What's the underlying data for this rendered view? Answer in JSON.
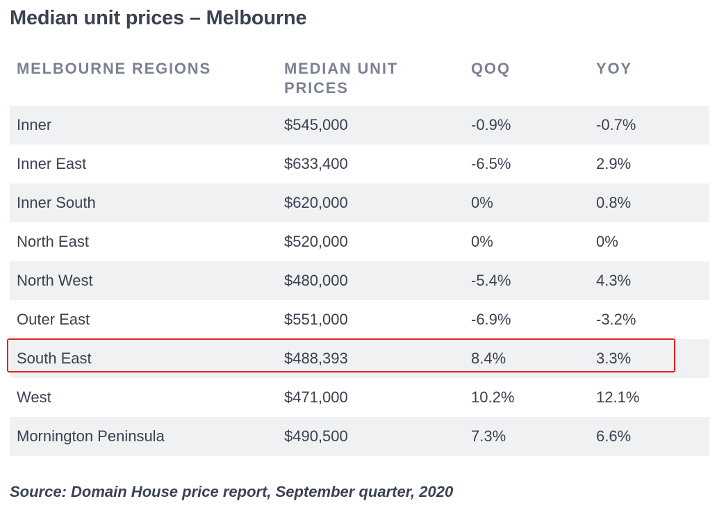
{
  "title": "Median unit prices – Melbourne",
  "table": {
    "headers": [
      "MELBOURNE REGIONS",
      "MEDIAN UNIT PRICES",
      "QOQ",
      "YOY"
    ],
    "rows": [
      {
        "region": "Inner",
        "price": "$545,000",
        "qoq": "-0.9%",
        "yoy": "-0.7%"
      },
      {
        "region": "Inner East",
        "price": "$633,400",
        "qoq": "-6.5%",
        "yoy": "2.9%"
      },
      {
        "region": "Inner South",
        "price": "$620,000",
        "qoq": "0%",
        "yoy": "0.8%"
      },
      {
        "region": "North East",
        "price": "$520,000",
        "qoq": "0%",
        "yoy": "0%"
      },
      {
        "region": "North West",
        "price": "$480,000",
        "qoq": "-5.4%",
        "yoy": "4.3%"
      },
      {
        "region": "Outer East",
        "price": "$551,000",
        "qoq": "-6.9%",
        "yoy": "-3.2%"
      },
      {
        "region": "South East",
        "price": "$488,393",
        "qoq": "8.4%",
        "yoy": "3.3%"
      },
      {
        "region": "West",
        "price": "$471,000",
        "qoq": "10.2%",
        "yoy": "12.1%"
      },
      {
        "region": "Mornington Peninsula",
        "price": "$490,500",
        "qoq": "7.3%",
        "yoy": "6.6%"
      }
    ],
    "highlighted_row": "South East"
  },
  "source": "Source: Domain House price report, September quarter, 2020",
  "colors": {
    "highlight_border": "#e0231e",
    "row_shade": "#f0f1f3",
    "header_text": "#7b8190",
    "body_text": "#3a4050"
  }
}
